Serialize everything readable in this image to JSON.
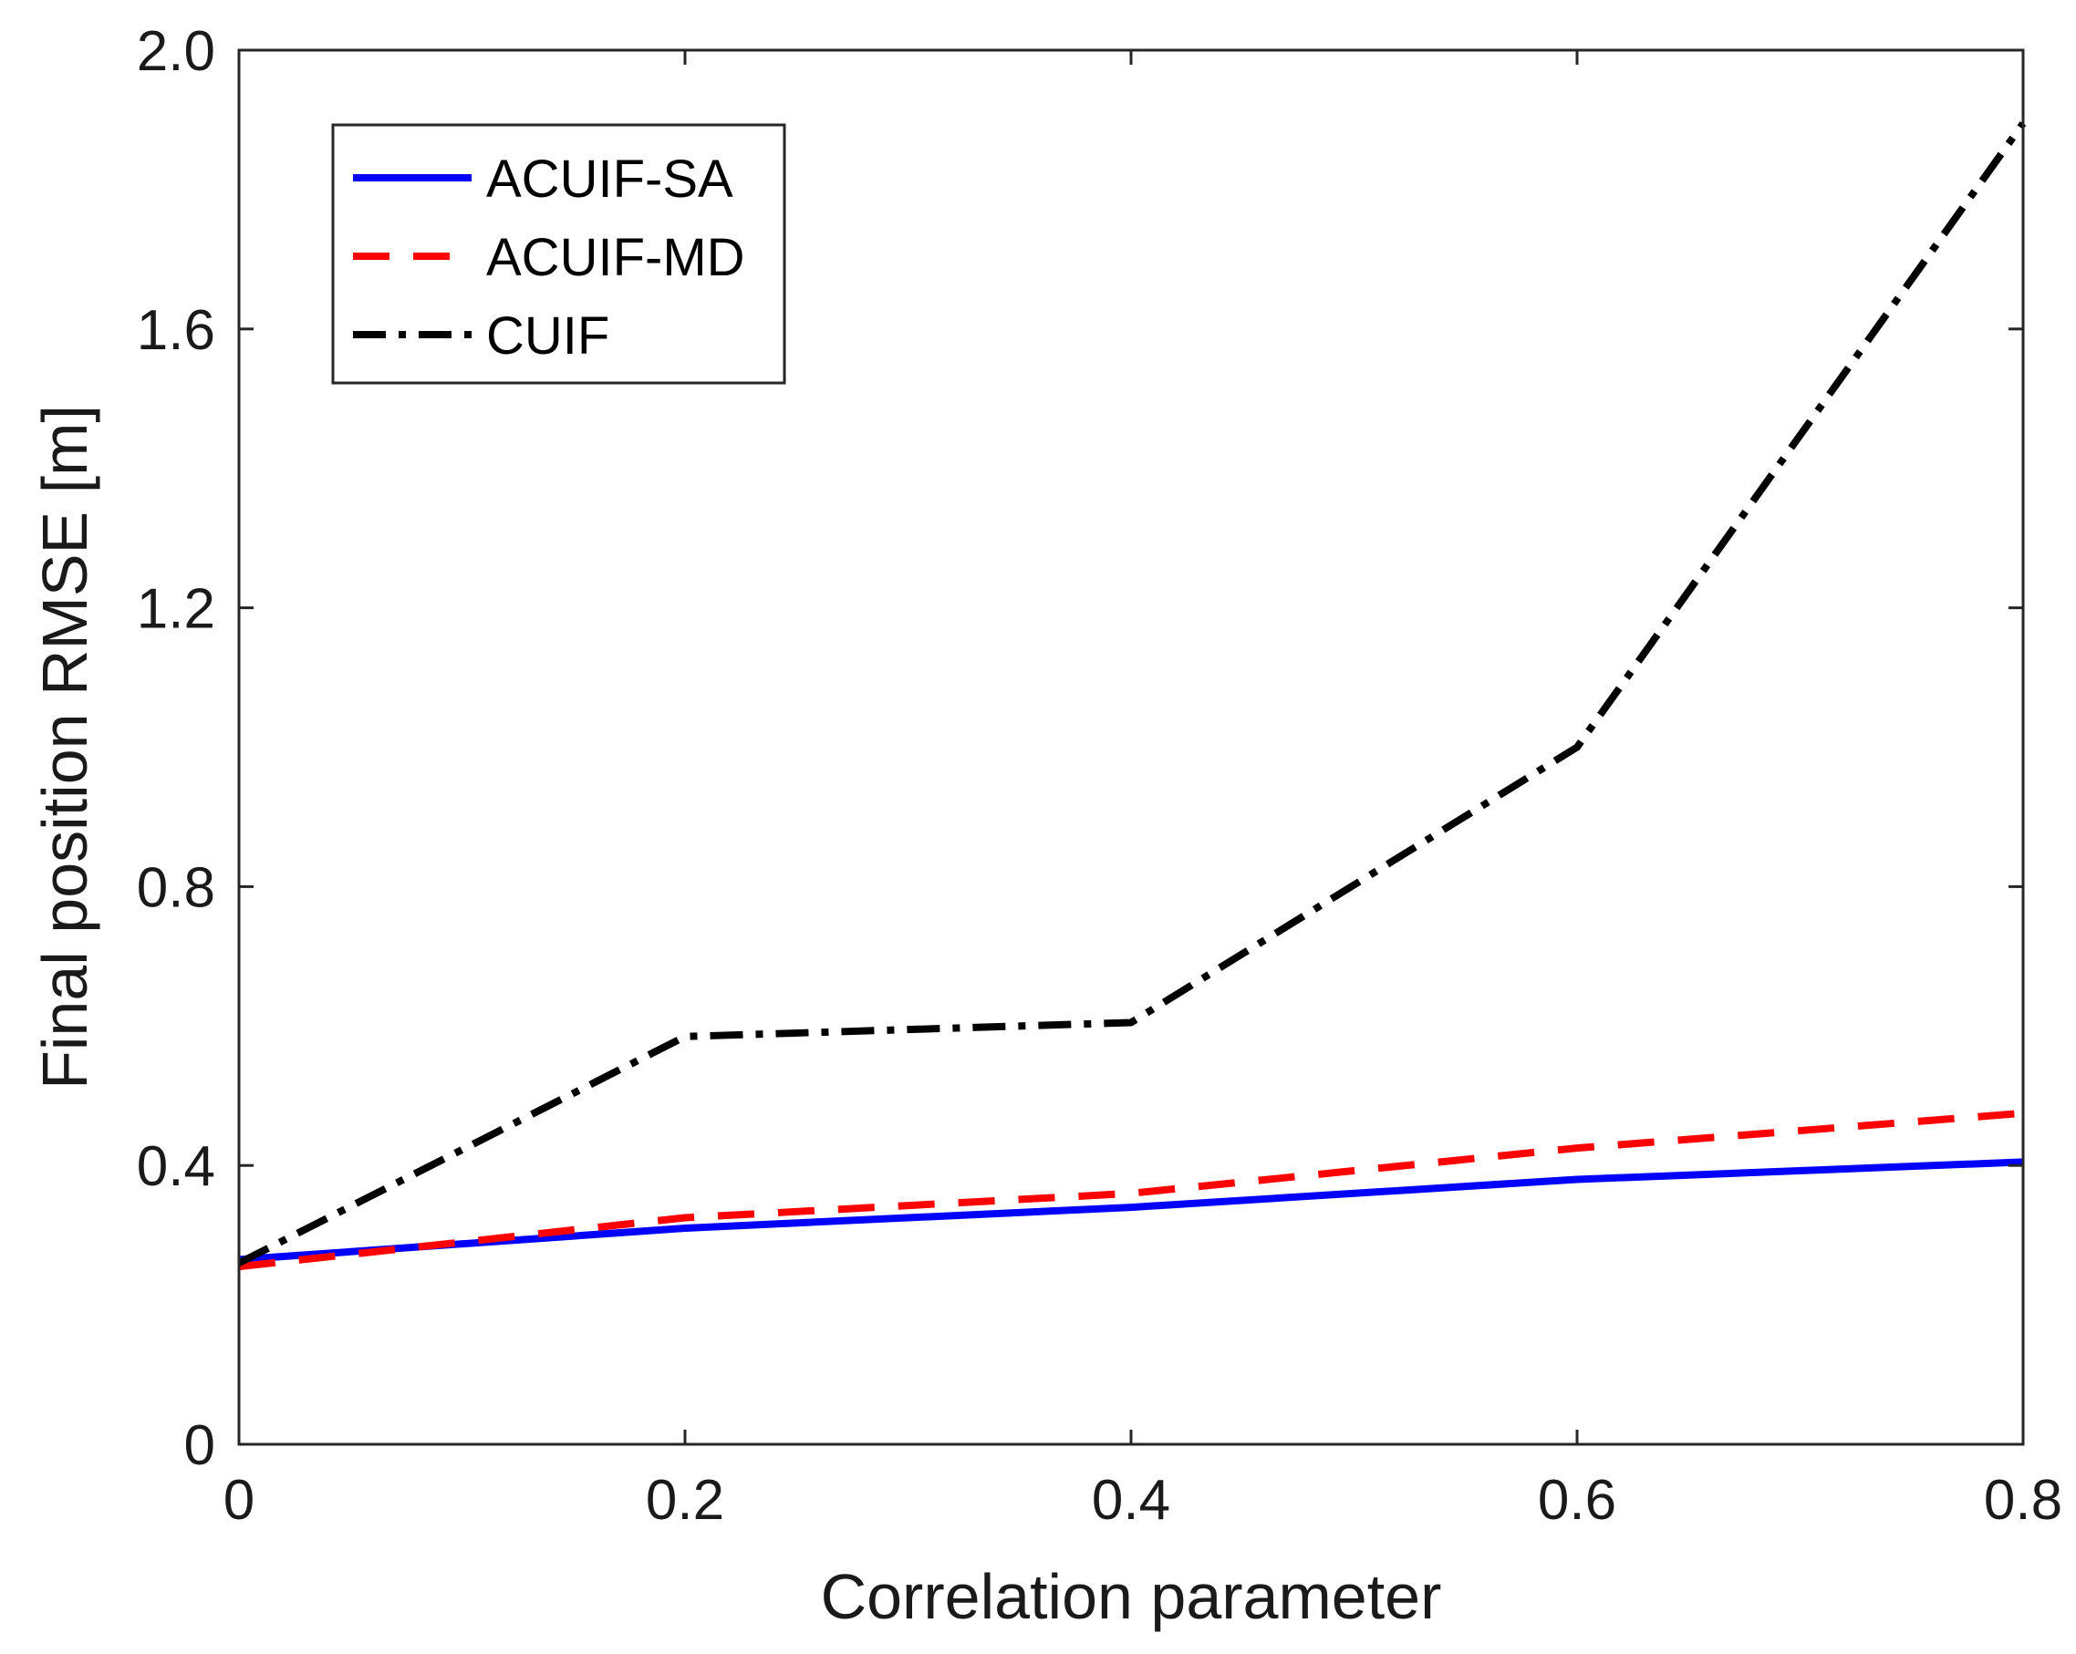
{
  "chart_data": {
    "type": "line",
    "title": "",
    "xlabel": "Correlation parameter",
    "ylabel": "Final position RMSE [m]",
    "xlim": [
      0,
      0.8
    ],
    "ylim": [
      0,
      2.0
    ],
    "grid": false,
    "legend_position": "top-left",
    "x": [
      0,
      0.2,
      0.4,
      0.6,
      0.8
    ],
    "x_tick_values": [
      0,
      0.2,
      0.4,
      0.6,
      0.8
    ],
    "x_tick_labels": [
      "0",
      "0.2",
      "0.4",
      "0.6",
      "0.8"
    ],
    "y_tick_values": [
      0,
      0.4,
      0.8,
      1.2,
      1.6,
      2.0
    ],
    "y_tick_labels": [
      "0",
      "0.4",
      "0.8",
      "1.2",
      "1.6",
      "2.0"
    ],
    "series": [
      {
        "name": "ACUIF-SA",
        "values": [
          0.265,
          0.31,
          0.34,
          0.38,
          0.405
        ],
        "color": "#0000ff",
        "line_style": "solid"
      },
      {
        "name": "ACUIF-MD",
        "values": [
          0.255,
          0.325,
          0.36,
          0.425,
          0.475
        ],
        "color": "#ff0000",
        "line_style": "dashed"
      },
      {
        "name": "CUIF",
        "values": [
          0.26,
          0.585,
          0.605,
          1.0,
          1.895
        ],
        "color": "#000000",
        "line_style": "dashdot"
      }
    ]
  }
}
